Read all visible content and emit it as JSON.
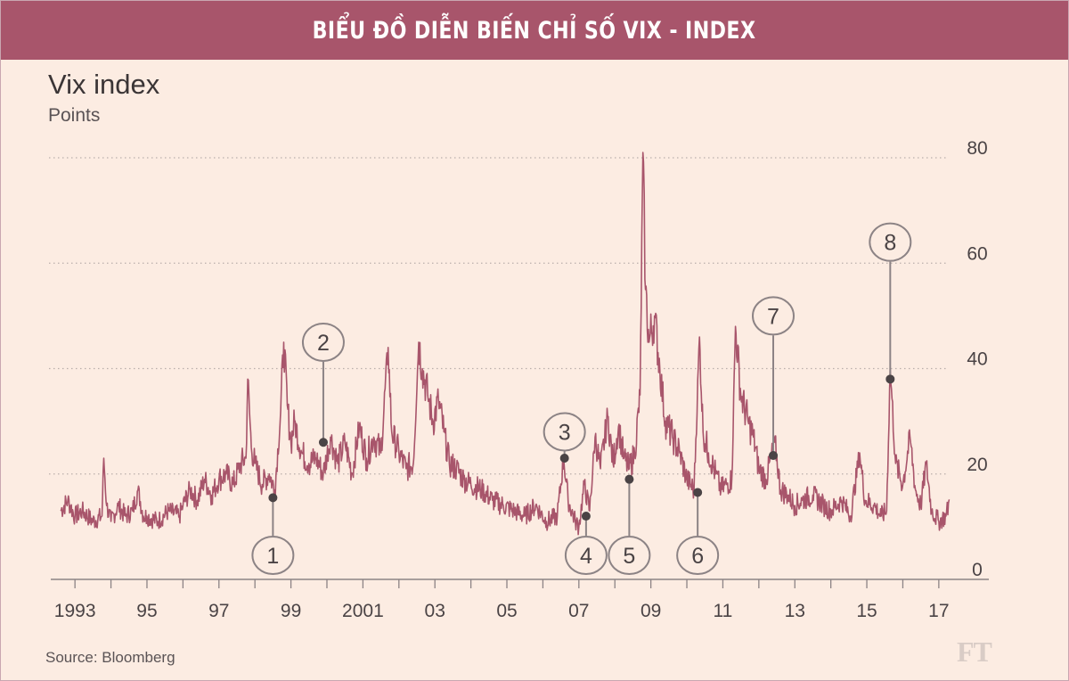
{
  "banner": {
    "title": "BIỂU ĐỒ DIỄN BIẾN CHỈ SỐ VIX - INDEX"
  },
  "chart_data": {
    "type": "line",
    "title": "Vix index",
    "ylabel": "Points",
    "source": "Source: Bloomberg",
    "logo": "FT",
    "ylim": [
      0,
      80
    ],
    "xlim": [
      1992.6,
      2017.35
    ],
    "y_ticks": [
      0,
      20,
      40,
      60,
      80
    ],
    "x_ticks": [
      {
        "year": 1993,
        "label": "1993"
      },
      {
        "year": 1995,
        "label": "95"
      },
      {
        "year": 1997,
        "label": "97"
      },
      {
        "year": 1999,
        "label": "99"
      },
      {
        "year": 2001,
        "label": "2001"
      },
      {
        "year": 2003,
        "label": "03"
      },
      {
        "year": 2005,
        "label": "05"
      },
      {
        "year": 2007,
        "label": "07"
      },
      {
        "year": 2009,
        "label": "09"
      },
      {
        "year": 2011,
        "label": "11"
      },
      {
        "year": 2013,
        "label": "13"
      },
      {
        "year": 2015,
        "label": "15"
      },
      {
        "year": 2017,
        "label": "17"
      }
    ],
    "series": [
      {
        "name": "Vix index",
        "color": "#a8556b",
        "points": [
          [
            1992.6,
            13
          ],
          [
            1992.8,
            15
          ],
          [
            1993.0,
            12
          ],
          [
            1993.2,
            13
          ],
          [
            1993.5,
            11
          ],
          [
            1993.75,
            12
          ],
          [
            1993.8,
            23
          ],
          [
            1993.88,
            14
          ],
          [
            1994.0,
            11
          ],
          [
            1994.2,
            14
          ],
          [
            1994.4,
            12
          ],
          [
            1994.6,
            13
          ],
          [
            1994.75,
            17
          ],
          [
            1994.9,
            12
          ],
          [
            1995.0,
            12
          ],
          [
            1995.3,
            11
          ],
          [
            1995.6,
            13
          ],
          [
            1995.9,
            12
          ],
          [
            1996.0,
            14
          ],
          [
            1996.2,
            17
          ],
          [
            1996.4,
            15
          ],
          [
            1996.6,
            19
          ],
          [
            1996.8,
            16
          ],
          [
            1997.0,
            19
          ],
          [
            1997.2,
            20
          ],
          [
            1997.4,
            18
          ],
          [
            1997.6,
            22
          ],
          [
            1997.75,
            23
          ],
          [
            1997.8,
            38
          ],
          [
            1997.9,
            25
          ],
          [
            1998.0,
            22
          ],
          [
            1998.2,
            18
          ],
          [
            1998.4,
            20
          ],
          [
            1998.55,
            17
          ],
          [
            1998.7,
            30
          ],
          [
            1998.8,
            45
          ],
          [
            1998.9,
            33
          ],
          [
            1999.0,
            26
          ],
          [
            1999.1,
            30
          ],
          [
            1999.3,
            24
          ],
          [
            1999.5,
            22
          ],
          [
            1999.7,
            23
          ],
          [
            1999.9,
            20
          ],
          [
            2000.1,
            27
          ],
          [
            2000.3,
            22
          ],
          [
            2000.5,
            26
          ],
          [
            2000.7,
            20
          ],
          [
            2000.9,
            29
          ],
          [
            2001.1,
            23
          ],
          [
            2001.3,
            27
          ],
          [
            2001.5,
            24
          ],
          [
            2001.7,
            44
          ],
          [
            2001.8,
            28
          ],
          [
            2002.0,
            24
          ],
          [
            2002.2,
            21
          ],
          [
            2002.4,
            22
          ],
          [
            2002.55,
            45
          ],
          [
            2002.65,
            40
          ],
          [
            2002.8,
            35
          ],
          [
            2002.95,
            30
          ],
          [
            2003.1,
            34
          ],
          [
            2003.25,
            28
          ],
          [
            2003.4,
            22
          ],
          [
            2003.6,
            21
          ],
          [
            2003.8,
            19
          ],
          [
            2004.0,
            18
          ],
          [
            2004.3,
            17
          ],
          [
            2004.6,
            15
          ],
          [
            2004.9,
            14
          ],
          [
            2005.2,
            13
          ],
          [
            2005.5,
            12
          ],
          [
            2005.8,
            14
          ],
          [
            2006.1,
            11
          ],
          [
            2006.4,
            12
          ],
          [
            2006.58,
            23
          ],
          [
            2006.7,
            15
          ],
          [
            2006.9,
            11
          ],
          [
            2007.0,
            10
          ],
          [
            2007.15,
            18
          ],
          [
            2007.3,
            13
          ],
          [
            2007.45,
            27
          ],
          [
            2007.6,
            21
          ],
          [
            2007.8,
            31
          ],
          [
            2007.95,
            22
          ],
          [
            2008.1,
            29
          ],
          [
            2008.25,
            23
          ],
          [
            2008.4,
            21
          ],
          [
            2008.55,
            24
          ],
          [
            2008.7,
            35
          ],
          [
            2008.78,
            81
          ],
          [
            2008.85,
            55
          ],
          [
            2008.95,
            45
          ],
          [
            2009.1,
            50
          ],
          [
            2009.25,
            40
          ],
          [
            2009.4,
            30
          ],
          [
            2009.6,
            27
          ],
          [
            2009.8,
            24
          ],
          [
            2010.0,
            19
          ],
          [
            2010.2,
            17
          ],
          [
            2010.35,
            46
          ],
          [
            2010.45,
            28
          ],
          [
            2010.6,
            24
          ],
          [
            2010.8,
            20
          ],
          [
            2010.95,
            17
          ],
          [
            2011.1,
            18
          ],
          [
            2011.25,
            19
          ],
          [
            2011.35,
            48
          ],
          [
            2011.5,
            35
          ],
          [
            2011.7,
            30
          ],
          [
            2011.85,
            27
          ],
          [
            2012.0,
            21
          ],
          [
            2012.2,
            19
          ],
          [
            2012.45,
            26
          ],
          [
            2012.6,
            17
          ],
          [
            2012.8,
            16
          ],
          [
            2013.0,
            14
          ],
          [
            2013.2,
            15
          ],
          [
            2013.5,
            16
          ],
          [
            2013.8,
            14
          ],
          [
            2014.0,
            13
          ],
          [
            2014.3,
            15
          ],
          [
            2014.55,
            12
          ],
          [
            2014.8,
            24
          ],
          [
            2014.95,
            15
          ],
          [
            2015.2,
            14
          ],
          [
            2015.4,
            12
          ],
          [
            2015.55,
            13
          ],
          [
            2015.65,
            40
          ],
          [
            2015.8,
            22
          ],
          [
            2016.0,
            18
          ],
          [
            2016.2,
            27
          ],
          [
            2016.35,
            17
          ],
          [
            2016.5,
            14
          ],
          [
            2016.65,
            22
          ],
          [
            2016.8,
            13
          ],
          [
            2017.0,
            11
          ],
          [
            2017.2,
            12
          ],
          [
            2017.3,
            15
          ]
        ]
      }
    ],
    "annotations": [
      {
        "label": "1",
        "x": 1998.5,
        "y": 15.5,
        "pos": "below"
      },
      {
        "label": "2",
        "x": 1999.9,
        "y": 26,
        "pos": "above",
        "bubble_y": 45
      },
      {
        "label": "3",
        "x": 2006.6,
        "y": 23,
        "pos": "above",
        "bubble_y": 28
      },
      {
        "label": "4",
        "x": 2007.2,
        "y": 12,
        "pos": "below"
      },
      {
        "label": "5",
        "x": 2008.4,
        "y": 19,
        "pos": "below"
      },
      {
        "label": "6",
        "x": 2010.3,
        "y": 16.5,
        "pos": "below"
      },
      {
        "label": "7",
        "x": 2012.4,
        "y": 23.5,
        "pos": "above",
        "bubble_y": 50
      },
      {
        "label": "8",
        "x": 2015.65,
        "y": 38,
        "pos": "above",
        "bubble_y": 64
      }
    ]
  }
}
